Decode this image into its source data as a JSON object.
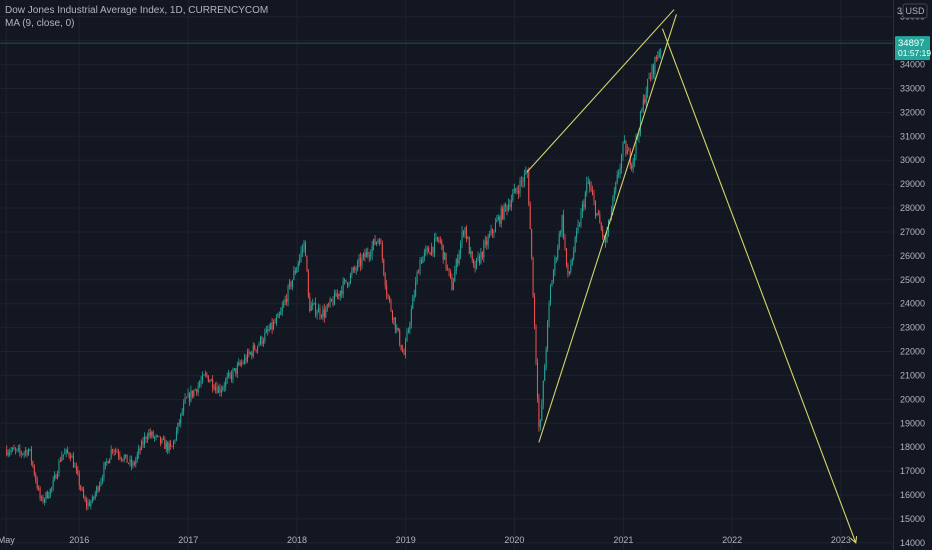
{
  "header": {
    "title": "Dow Jones Industrial Average Index, 1D, CURRENCYCOM",
    "indicator": "MA (9, close, 0)"
  },
  "price_axis": {
    "currency_label": "USD",
    "top_partial_label": "3"
  },
  "last_price": {
    "value": "34897",
    "countdown": "01:57:19"
  },
  "colors": {
    "background": "#131722",
    "grid": "#1e222d",
    "up": "#26a69a",
    "down": "#ef5350",
    "drawing": "#d4d46a",
    "axis_text": "#b2b5be",
    "price_label_bg": "#26a69a"
  },
  "chart_data": {
    "type": "candlestick",
    "title": "Dow Jones Industrial Average Index, 1D, CURRENCYCOM",
    "x_ticks": [
      "May",
      "2016",
      "2017",
      "2018",
      "2019",
      "2020",
      "2021",
      "2022",
      "2023"
    ],
    "y_ticks": [
      14000,
      15000,
      16000,
      17000,
      18000,
      19000,
      20000,
      21000,
      22000,
      23000,
      24000,
      25000,
      26000,
      27000,
      28000,
      29000,
      30000,
      31000,
      32000,
      33000,
      34000,
      35000,
      36000
    ],
    "ylim": [
      13700,
      36700
    ],
    "xlim": [
      "2015-04-10",
      "2023-06-25"
    ],
    "grid": true,
    "last_price": 34897,
    "series": [
      {
        "kind": "price",
        "points": [
          [
            "2015-05-01",
            17900
          ],
          [
            "2015-06-15",
            17750
          ],
          [
            "2015-07-15",
            17900
          ],
          [
            "2015-08-24",
            15700
          ],
          [
            "2015-09-30",
            16300
          ],
          [
            "2015-11-01",
            17700
          ],
          [
            "2015-12-01",
            17750
          ],
          [
            "2016-01-20",
            15600
          ],
          [
            "2016-02-11",
            15700
          ],
          [
            "2016-04-20",
            18000
          ],
          [
            "2016-06-27",
            17200
          ],
          [
            "2016-08-15",
            18600
          ],
          [
            "2016-11-04",
            17900
          ],
          [
            "2016-12-20",
            19900
          ],
          [
            "2017-03-01",
            21000
          ],
          [
            "2017-04-13",
            20400
          ],
          [
            "2017-08-01",
            22000
          ],
          [
            "2017-11-01",
            23400
          ],
          [
            "2018-01-26",
            26600
          ],
          [
            "2018-02-08",
            23900
          ],
          [
            "2018-04-02",
            23600
          ],
          [
            "2018-06-01",
            24700
          ],
          [
            "2018-10-03",
            26800
          ],
          [
            "2018-10-29",
            24400
          ],
          [
            "2018-12-24",
            21800
          ],
          [
            "2019-02-15",
            25800
          ],
          [
            "2019-04-23",
            26700
          ],
          [
            "2019-06-03",
            24700
          ],
          [
            "2019-07-15",
            27300
          ],
          [
            "2019-08-15",
            25400
          ],
          [
            "2019-11-01",
            27400
          ],
          [
            "2020-02-12",
            29500
          ],
          [
            "2020-02-28",
            25400
          ],
          [
            "2020-03-23",
            18400
          ],
          [
            "2020-04-29",
            24600
          ],
          [
            "2020-06-08",
            27600
          ],
          [
            "2020-06-26",
            25000
          ],
          [
            "2020-09-02",
            29100
          ],
          [
            "2020-10-30",
            26500
          ],
          [
            "2020-12-31",
            30600
          ],
          [
            "2021-01-29",
            29900
          ],
          [
            "2021-03-15",
            32900
          ],
          [
            "2021-04-15",
            34100
          ],
          [
            "2021-05-07",
            34900
          ]
        ]
      },
      {
        "kind": "drawing_upper_line",
        "points": [
          [
            "2020-02-12",
            29500
          ],
          [
            "2021-06-20",
            36300
          ]
        ]
      },
      {
        "kind": "drawing_lower_line",
        "points": [
          [
            "2020-03-23",
            18200
          ],
          [
            "2021-06-28",
            36100
          ]
        ]
      },
      {
        "kind": "drawing_projection_arrow",
        "points": [
          [
            "2021-05-12",
            35500
          ],
          [
            "2023-02-20",
            14000
          ]
        ]
      }
    ]
  }
}
